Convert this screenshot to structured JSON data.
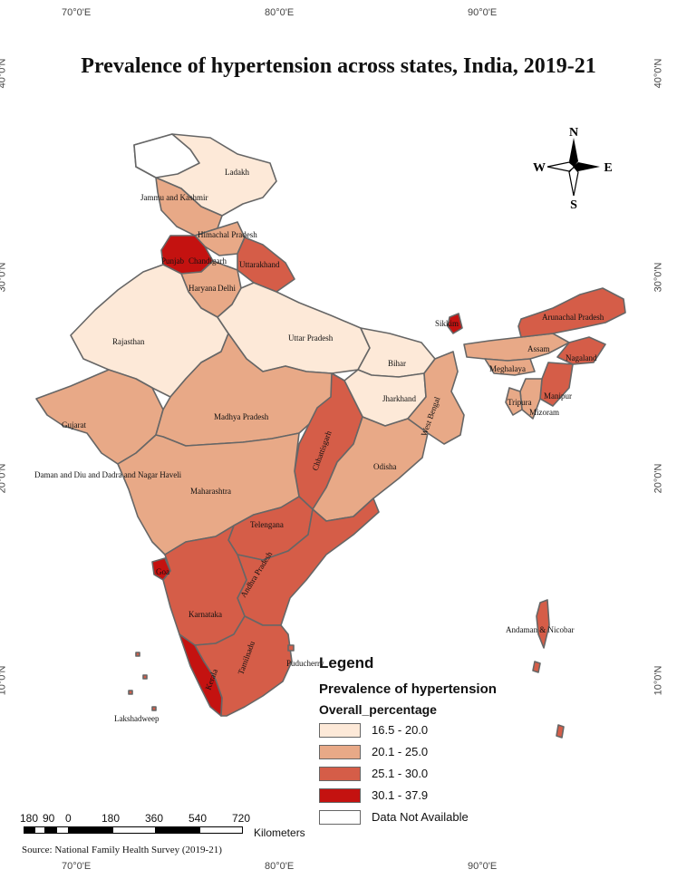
{
  "title": "Prevalence of hypertension across states, India, 2019-21",
  "coordinates": {
    "top": [
      "70°0'E",
      "80°0'E",
      "90°0'E"
    ],
    "bottom": [
      "70°0'E",
      "80°0'E",
      "90°0'E"
    ],
    "left": [
      "40°0'N",
      "30°0'N",
      "20°0'N",
      "10°0'N"
    ],
    "right": [
      "40°0'N",
      "30°0'N",
      "20°0'N",
      "10°0'N"
    ]
  },
  "colors": {
    "c1": "#fde9d8",
    "c2": "#e8a987",
    "c3": "#d55d48",
    "c4": "#c41210",
    "na": "#ffffff",
    "border": "#666666"
  },
  "compass": {
    "n": "N",
    "s": "S",
    "e": "E",
    "w": "W"
  },
  "regions": [
    {
      "name": "Ladakh",
      "class": "16.5 - 20.0"
    },
    {
      "name": "Jammu and Kashmir",
      "class": "20.1 - 25.0"
    },
    {
      "name": "Himachal Pradesh",
      "class": "20.1 - 25.0"
    },
    {
      "name": "Punjab",
      "class": "30.1 - 37.9"
    },
    {
      "name": "Chandigarh",
      "class": "30.1 - 37.9"
    },
    {
      "name": "Uttarakhand",
      "class": "25.1 - 30.0"
    },
    {
      "name": "Haryana",
      "class": "20.1 - 25.0"
    },
    {
      "name": "Delhi",
      "class": "20.1 - 25.0"
    },
    {
      "name": "Rajasthan",
      "class": "16.5 - 20.0"
    },
    {
      "name": "Uttar Pradesh",
      "class": "16.5 - 20.0"
    },
    {
      "name": "Bihar",
      "class": "16.5 - 20.0"
    },
    {
      "name": "Sikkim",
      "class": "30.1 - 37.9"
    },
    {
      "name": "Arunachal Pradesh",
      "class": "25.1 - 30.0"
    },
    {
      "name": "Assam",
      "class": "20.1 - 25.0"
    },
    {
      "name": "Nagaland",
      "class": "25.1 - 30.0"
    },
    {
      "name": "Meghalaya",
      "class": "20.1 - 25.0"
    },
    {
      "name": "Manipur",
      "class": "25.1 - 30.0"
    },
    {
      "name": "Tripura",
      "class": "20.1 - 25.0"
    },
    {
      "name": "Mizoram",
      "class": "20.1 - 25.0"
    },
    {
      "name": "Jharkhand",
      "class": "16.5 - 20.0"
    },
    {
      "name": "West Bengal",
      "class": "20.1 - 25.0"
    },
    {
      "name": "Gujarat",
      "class": "20.1 - 25.0"
    },
    {
      "name": "Madhya Pradesh",
      "class": "20.1 - 25.0"
    },
    {
      "name": "Chhattisgarh",
      "class": "25.1 - 30.0"
    },
    {
      "name": "Odisha",
      "class": "20.1 - 25.0"
    },
    {
      "name": "Daman and Diu and Dadra and Nagar Haveli",
      "class": "20.1 - 25.0"
    },
    {
      "name": "Maharashtra",
      "class": "20.1 - 25.0"
    },
    {
      "name": "Telengana",
      "class": "25.1 - 30.0"
    },
    {
      "name": "Goa",
      "class": "30.1 - 37.9"
    },
    {
      "name": "Andhra Pradesh",
      "class": "25.1 - 30.0"
    },
    {
      "name": "Karnataka",
      "class": "25.1 - 30.0"
    },
    {
      "name": "Kerala",
      "class": "30.1 - 37.9"
    },
    {
      "name": "Tamilnadu",
      "class": "25.1 - 30.0"
    },
    {
      "name": "Puducherry",
      "class": "25.1 - 30.0"
    },
    {
      "name": "Lakshadweep",
      "class": "25.1 - 30.0"
    },
    {
      "name": "Andaman & Nicobar",
      "class": "25.1 - 30.0"
    }
  ],
  "legend": {
    "title": "Legend",
    "subtitle": "Prevalence of hypertension",
    "field": "Overall_percentage",
    "items": [
      {
        "label": "16.5 - 20.0",
        "color": "#fde9d8"
      },
      {
        "label": "20.1 - 25.0",
        "color": "#e8a987"
      },
      {
        "label": "25.1 - 30.0",
        "color": "#d55d48"
      },
      {
        "label": "30.1 - 37.9",
        "color": "#c41210"
      },
      {
        "label": "Data Not Available",
        "color": "#ffffff"
      }
    ]
  },
  "scale_bar": {
    "ticks": [
      "180",
      "90",
      "0",
      "180",
      "360",
      "540",
      "720"
    ],
    "unit": "Kilometers"
  },
  "source": "Source: National Family Health Survey (2019-21)"
}
